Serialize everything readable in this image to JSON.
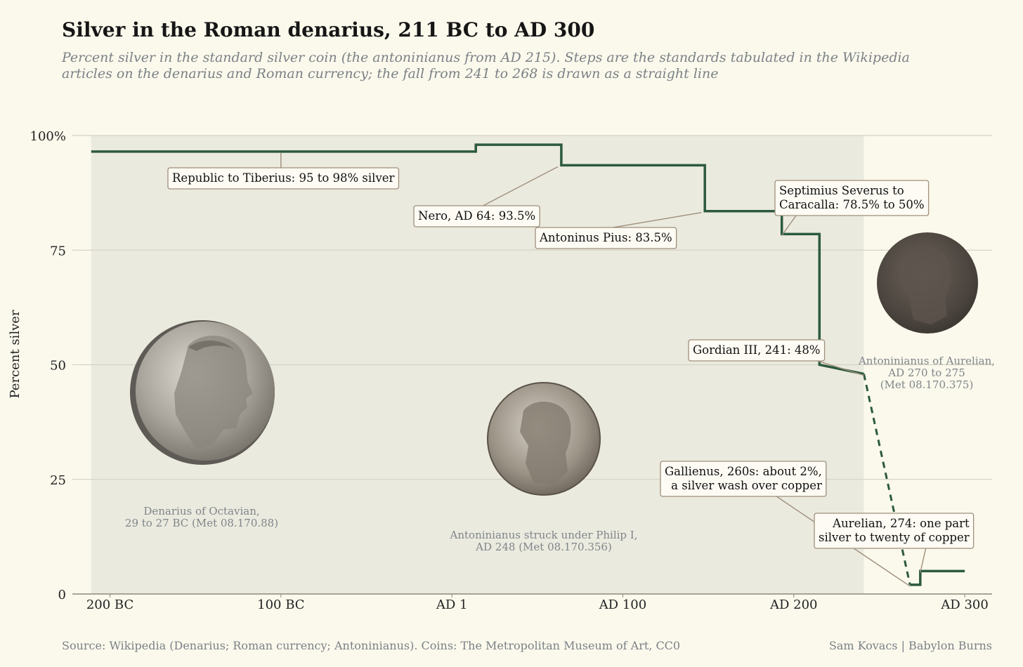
{
  "title": "Silver in the Roman denarius, 211 BC to AD 300",
  "subtitle": "Percent silver in the standard silver coin (the antoninianus from AD 215). Steps are the standards tabulated in the Wikipedia articles on the denarius and Roman currency; the fall from 241 to 268 is drawn as a straight line",
  "source": "Source: Wikipedia (Denarius; Roman currency; Antoninianus). Coins: The Metropolitan Museum of Art, CC0",
  "credit": "Sam Kovacs | Babylon Burns",
  "chart_data": {
    "type": "line",
    "title": "Silver in the Roman denarius, 211 BC to AD 300",
    "ylabel": "Percent silver",
    "xlabel": "",
    "xlim": [
      -222,
      316
    ],
    "ylim": [
      0,
      100
    ],
    "grid": "horizontal",
    "x_ticks": [
      {
        "value": -200,
        "label": "200 BC"
      },
      {
        "value": -100,
        "label": "100 BC"
      },
      {
        "value": 0,
        "label": "AD 1"
      },
      {
        "value": 100,
        "label": "AD 100"
      },
      {
        "value": 200,
        "label": "AD 200"
      },
      {
        "value": 300,
        "label": "AD 300"
      }
    ],
    "y_ticks": [
      {
        "value": 0,
        "label": "0"
      },
      {
        "value": 25,
        "label": "25"
      },
      {
        "value": 50,
        "label": "50"
      },
      {
        "value": 75,
        "label": "75"
      },
      {
        "value": 100,
        "label": "100%"
      }
    ],
    "shaded_region": {
      "x0": -211,
      "x1": 241
    },
    "colors": {
      "line": "#2c5a3f",
      "shade": "#ebeadf",
      "grid": "#d5d3c4",
      "leader": "#9e8f7c"
    },
    "series": [
      {
        "style": "solid",
        "x": [
          -211,
          14,
          14,
          64,
          64,
          148,
          148,
          193,
          193,
          215,
          215,
          241
        ],
        "y": [
          96.5,
          96.5,
          98,
          98,
          93.5,
          93.5,
          83.5,
          83.5,
          78.5,
          78.5,
          50,
          48
        ]
      },
      {
        "style": "dashed",
        "x": [
          241,
          268
        ],
        "y": [
          48,
          2
        ]
      },
      {
        "style": "solid",
        "x": [
          268,
          274,
          274,
          300
        ],
        "y": [
          2,
          2,
          5,
          5
        ]
      }
    ],
    "annotations": [
      {
        "lines": [
          "Republic to Tiberius: 95 to 98% silver"
        ],
        "point": [
          -100,
          96.5
        ]
      },
      {
        "lines": [
          "Nero, AD 64: 93.5%"
        ],
        "point": [
          62,
          93.5
        ]
      },
      {
        "lines": [
          "Antoninus Pius: 83.5%"
        ],
        "point": [
          146,
          83.5
        ]
      },
      {
        "lines": [
          "Septimius Severus to",
          "Caracalla: 78.5% to 50%"
        ],
        "point": [
          193,
          78.5
        ]
      },
      {
        "lines": [
          "Gordian III, 241: 48%"
        ],
        "point": [
          241,
          48
        ]
      },
      {
        "lines": [
          "Gallienus, 260s: about 2%,",
          "a silver wash over copper"
        ],
        "point": [
          268,
          2
        ]
      },
      {
        "lines": [
          "Aurelian, 274: one part",
          "silver to twenty of copper"
        ],
        "point": [
          274,
          5
        ]
      }
    ],
    "coin_captions": [
      {
        "lines": [
          "Denarius of Octavian,",
          "29 to 27 BC (Met 08.170.88)"
        ]
      },
      {
        "lines": [
          "Antoninianus struck under Philip I,",
          "AD 248 (Met 08.170.356)"
        ]
      },
      {
        "lines": [
          "Antoninianus of Aurelian,",
          "AD 270 to 275",
          "(Met 08.170.375)"
        ]
      }
    ]
  }
}
